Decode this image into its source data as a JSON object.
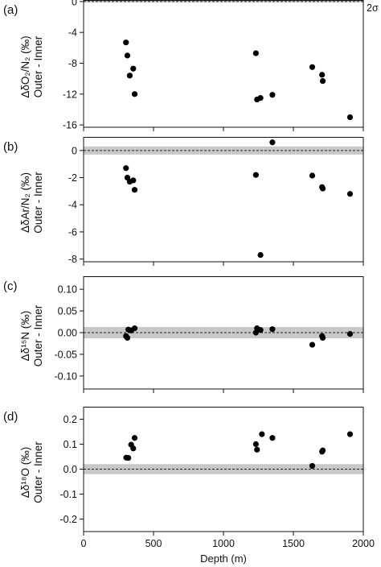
{
  "xlabel": "Depth (m)",
  "xlim": [
    0,
    2000
  ],
  "xticks": [
    0,
    500,
    1000,
    1500,
    2000
  ],
  "xtick_labels": [
    "0",
    "500",
    "1000",
    "1500",
    "2000"
  ],
  "sigma_label": "2σ",
  "chart_data": [
    {
      "type": "scatter",
      "panel_label": "(a)",
      "ylabel_line1": "ΔδO₂/N₂ (‰)",
      "ylabel_line2": "Outer - Inner",
      "ylim": [
        -16.3,
        0.2
      ],
      "yticks": [
        0,
        -4,
        -8,
        -12,
        -16
      ],
      "ytick_labels": [
        "0",
        "-4",
        "-8",
        "-12",
        "-16"
      ],
      "band_2sigma": [
        -0.12,
        0.12
      ],
      "zero_line": true,
      "x": [
        303,
        313,
        330,
        355,
        365,
        1232,
        1240,
        1265,
        1350,
        1635,
        1705,
        1710,
        1905
      ],
      "y": [
        -5.3,
        -7.0,
        -9.6,
        -8.7,
        -12.0,
        -6.7,
        -12.7,
        -12.5,
        -12.1,
        -8.5,
        -9.5,
        -10.3,
        -15.0
      ]
    },
    {
      "type": "scatter",
      "panel_label": "(b)",
      "ylabel_line1": "ΔδAr/N₂ (‰)",
      "ylabel_line2": "Outer - Inner",
      "ylim": [
        -8.2,
        1.0
      ],
      "yticks": [
        0,
        -2,
        -4,
        -6,
        -8
      ],
      "ytick_labels": [
        "0",
        "-2",
        "-4",
        "-6",
        "-8"
      ],
      "band_2sigma": [
        -0.3,
        0.3
      ],
      "zero_line": true,
      "x": [
        303,
        313,
        330,
        355,
        365,
        1232,
        1265,
        1350,
        1635,
        1705,
        1710,
        1905
      ],
      "y": [
        -1.3,
        -2.0,
        -2.3,
        -2.2,
        -2.9,
        -1.8,
        -7.7,
        0.6,
        -1.85,
        -2.7,
        -2.8,
        -3.2
      ]
    },
    {
      "type": "scatter",
      "panel_label": "(c)",
      "ylabel_line1": "Δδ¹⁵N (‰)",
      "ylabel_line2": "Outer - Inner",
      "ylim": [
        -0.13,
        0.13
      ],
      "yticks": [
        0.1,
        0.05,
        0.0,
        -0.05,
        -0.1
      ],
      "ytick_labels": [
        "0.10",
        "0.05",
        "0.00",
        "-0.05",
        "-0.10"
      ],
      "band_2sigma": [
        -0.013,
        0.013
      ],
      "zero_line": true,
      "x": [
        303,
        313,
        320,
        340,
        365,
        1232,
        1240,
        1265,
        1350,
        1635,
        1705,
        1710,
        1905
      ],
      "y": [
        -0.008,
        -0.012,
        0.007,
        0.005,
        0.01,
        0.0,
        0.01,
        0.006,
        0.008,
        -0.028,
        -0.008,
        -0.012,
        -0.003
      ]
    },
    {
      "type": "scatter",
      "panel_label": "(d)",
      "ylabel_line1": "Δδ¹⁸O (‰)",
      "ylabel_line2": "Outer - Inner",
      "ylim": [
        -0.25,
        0.25
      ],
      "yticks": [
        0.2,
        0.1,
        0.0,
        -0.1,
        -0.2
      ],
      "ytick_labels": [
        "0.2",
        "0.1",
        "0.0",
        "-0.1",
        "-0.2"
      ],
      "band_2sigma": [
        -0.02,
        0.02
      ],
      "zero_line": true,
      "x": [
        305,
        320,
        340,
        355,
        365,
        1232,
        1240,
        1275,
        1350,
        1635,
        1705,
        1710,
        1905
      ],
      "y": [
        0.046,
        0.045,
        0.098,
        0.083,
        0.125,
        0.1,
        0.078,
        0.14,
        0.125,
        0.013,
        0.07,
        0.075,
        0.14
      ]
    }
  ]
}
